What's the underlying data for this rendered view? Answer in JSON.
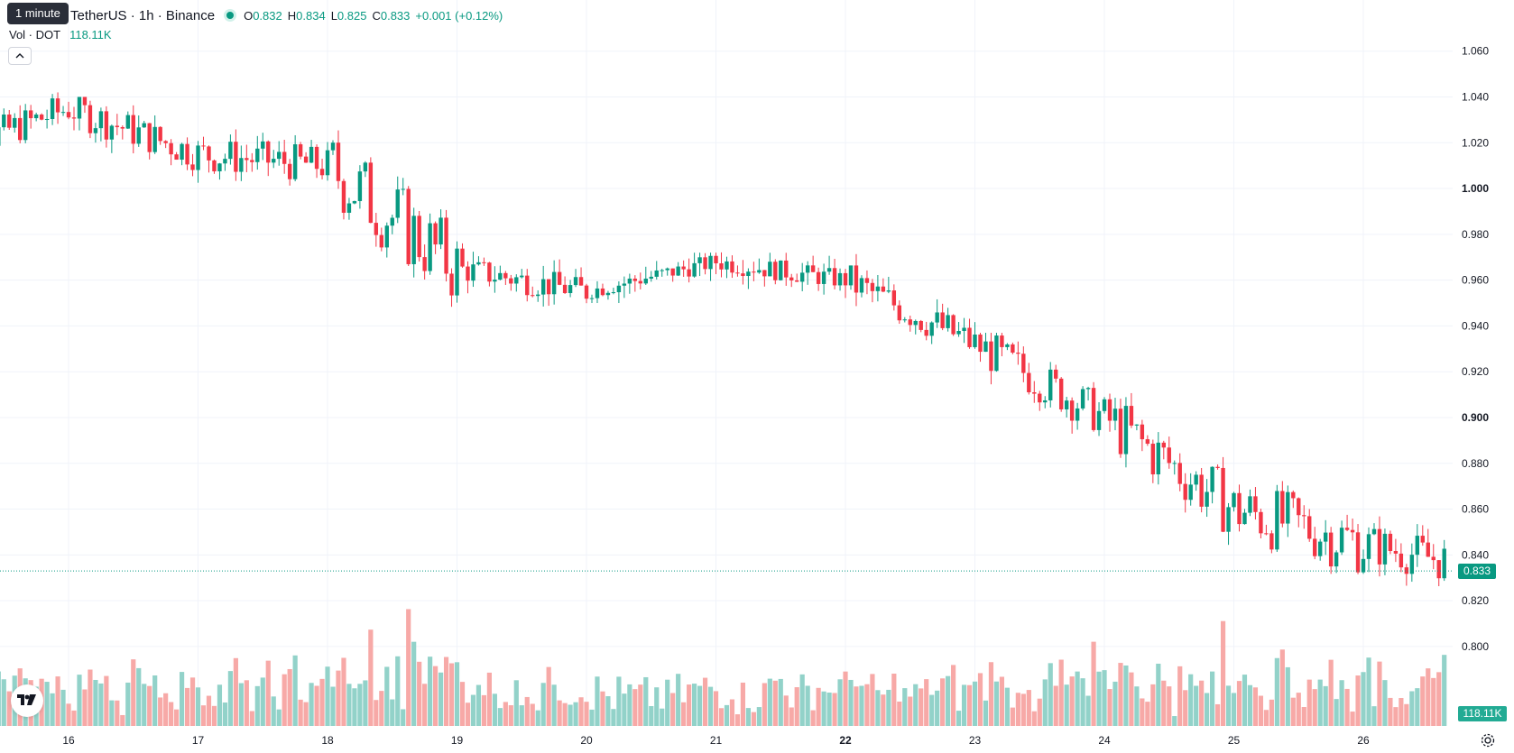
{
  "legend": {
    "symbol": "TetherUS · 1h · Binance",
    "open_key": "O",
    "open": "0.832",
    "high_key": "H",
    "high": "0.834",
    "low_key": "L",
    "low": "0.825",
    "close_key": "C",
    "close": "0.833",
    "change": "+0.001 (+0.12%)"
  },
  "tooltip": "1 minute",
  "volume": {
    "label": "Vol · DOT",
    "value": "118.11K"
  },
  "collapse_icon": "chevron-up-icon",
  "logo_icon": "tradingview-logo-icon",
  "settings_icon": "gear-icon",
  "price_axis": {
    "labels": [
      "1.060",
      "1.040",
      "1.020",
      "1.000",
      "0.980",
      "0.960",
      "0.940",
      "0.920",
      "0.900",
      "0.880",
      "0.860",
      "0.840",
      "0.820",
      "0.800"
    ],
    "bold": [
      "1.000",
      "0.900"
    ],
    "last_price": "0.833",
    "volume_tag": "118.11K"
  },
  "time_axis": {
    "labels": [
      "16",
      "17",
      "18",
      "19",
      "20",
      "21",
      "22",
      "23",
      "24",
      "25",
      "26"
    ],
    "bold": [
      "22"
    ]
  },
  "colors": {
    "up": "#089981",
    "down": "#f23645",
    "vol_up": "#92d2c9",
    "vol_down": "#f7a9a7",
    "grid": "#f0f3fa",
    "text": "#131722"
  },
  "chart_data": {
    "type": "candlestick",
    "interval": "1h",
    "ylim": [
      0.785,
      1.065
    ],
    "x_labels": [
      "16",
      "17",
      "18",
      "19",
      "20",
      "21",
      "22",
      "23",
      "24",
      "25",
      "26"
    ],
    "daily_path": [
      {
        "day": "15",
        "open": 1.015,
        "high": 1.048,
        "low": 1.005,
        "close": 1.035
      },
      {
        "day": "16",
        "open": 1.035,
        "high": 1.04,
        "low": 0.995,
        "close": 1.015
      },
      {
        "day": "17",
        "open": 1.015,
        "high": 1.037,
        "low": 0.99,
        "close": 1.01
      },
      {
        "day": "18",
        "open": 1.01,
        "high": 1.043,
        "low": 0.94,
        "close": 0.965
      },
      {
        "day": "19",
        "open": 0.965,
        "high": 0.983,
        "low": 0.948,
        "close": 0.955
      },
      {
        "day": "20",
        "open": 0.955,
        "high": 0.972,
        "low": 0.95,
        "close": 0.968
      },
      {
        "day": "21",
        "open": 0.968,
        "high": 0.976,
        "low": 0.95,
        "close": 0.96
      },
      {
        "day": "22",
        "open": 0.96,
        "high": 0.978,
        "low": 0.93,
        "close": 0.932
      },
      {
        "day": "23",
        "open": 0.932,
        "high": 0.937,
        "low": 0.883,
        "close": 0.9
      },
      {
        "day": "24",
        "open": 0.9,
        "high": 0.92,
        "low": 0.842,
        "close": 0.86
      },
      {
        "day": "25",
        "open": 0.86,
        "high": 0.9,
        "low": 0.82,
        "close": 0.845
      },
      {
        "day": "26",
        "open": 0.845,
        "high": 0.86,
        "low": 0.805,
        "close": 0.833
      }
    ],
    "last_close": 0.833,
    "last_volume": "118.11K"
  }
}
